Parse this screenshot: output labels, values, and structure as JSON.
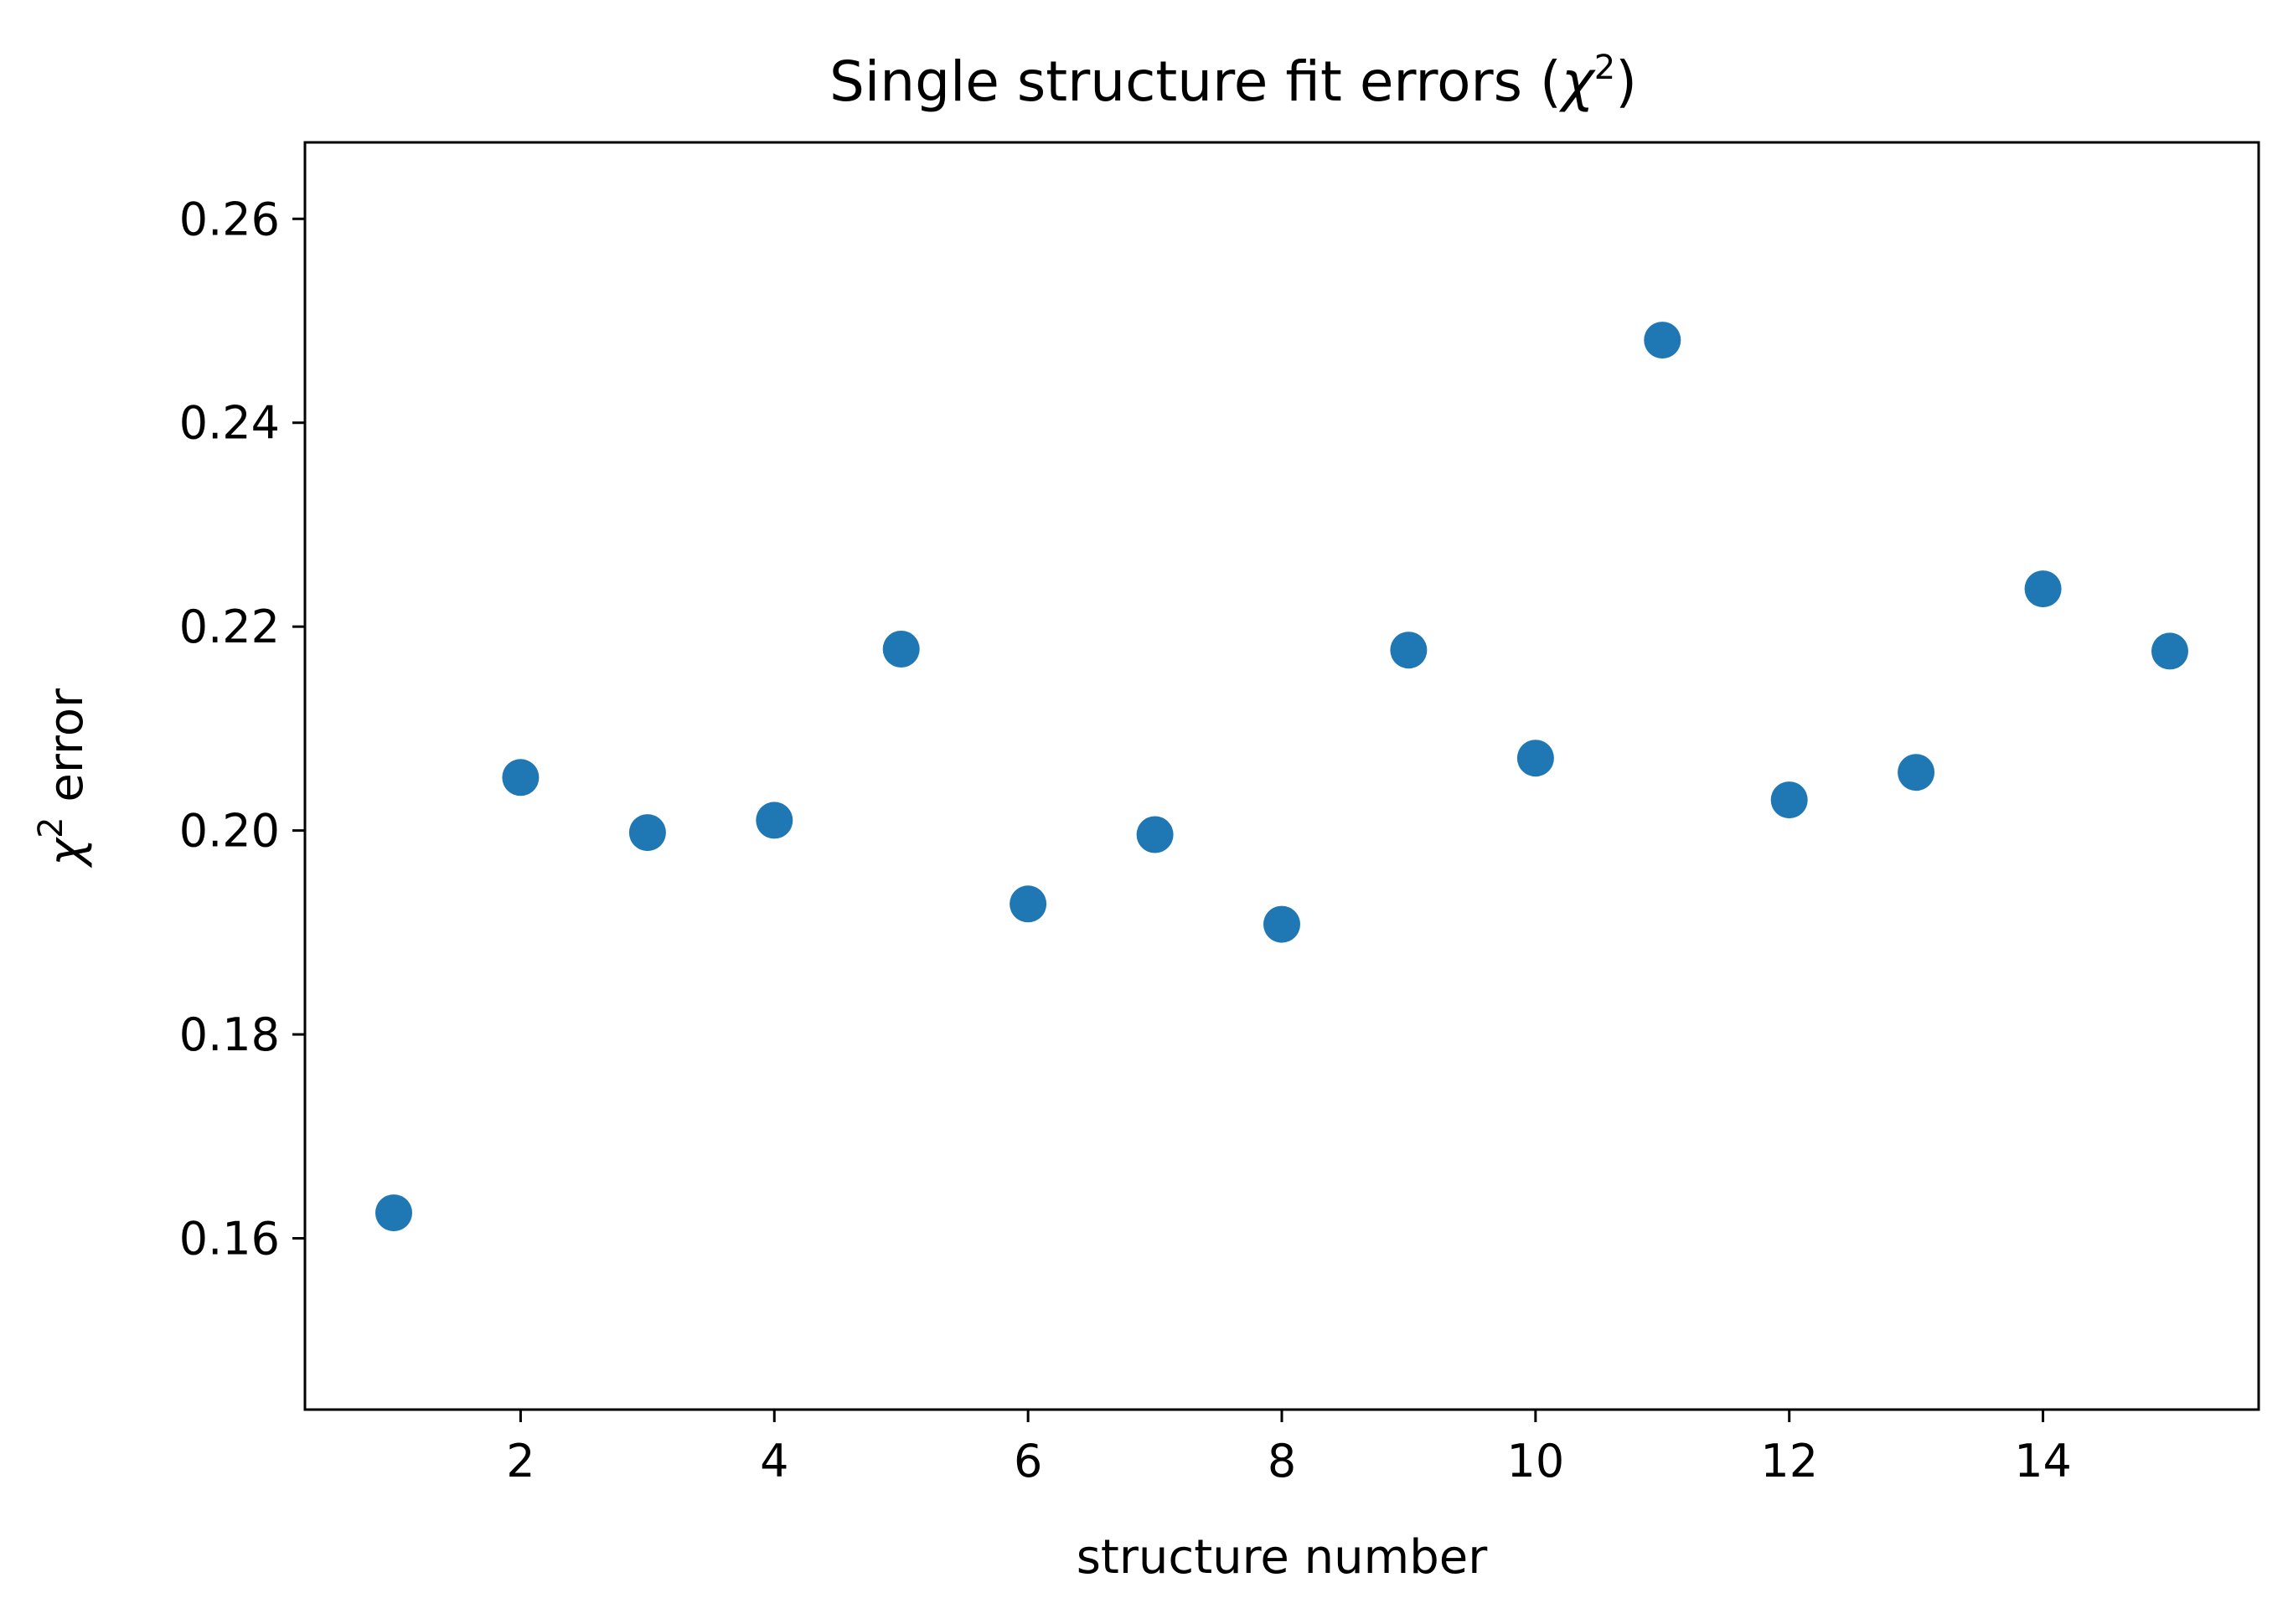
{
  "chart_data": {
    "type": "scatter",
    "title": "Single structure fit errors",
    "title_math": "χ",
    "title_sup": "2",
    "xlabel": "structure number",
    "ylabel_symbol": "χ",
    "ylabel_sup": "2",
    "ylabel_text": " error",
    "xlim": [
      0.3,
      15.7
    ],
    "ylim": [
      0.1432,
      0.2675
    ],
    "xticks": [
      2,
      4,
      6,
      8,
      10,
      12,
      14
    ],
    "xtick_labels": [
      "2",
      "4",
      "6",
      "8",
      "10",
      "12",
      "14"
    ],
    "yticks": [
      0.16,
      0.18,
      0.2,
      0.22,
      0.24,
      0.26
    ],
    "ytick_labels": [
      "0.16",
      "0.18",
      "0.20",
      "0.22",
      "0.24",
      "0.26"
    ],
    "grid": false,
    "legend": "none",
    "marker_color": "#1f77b4",
    "points": [
      {
        "x": 1,
        "y": 0.1625
      },
      {
        "x": 2,
        "y": 0.2052
      },
      {
        "x": 3,
        "y": 0.1998
      },
      {
        "x": 4,
        "y": 0.201
      },
      {
        "x": 5,
        "y": 0.2178
      },
      {
        "x": 6,
        "y": 0.1928
      },
      {
        "x": 7,
        "y": 0.1996
      },
      {
        "x": 8,
        "y": 0.1908
      },
      {
        "x": 9,
        "y": 0.2177
      },
      {
        "x": 10,
        "y": 0.2071
      },
      {
        "x": 11,
        "y": 0.2481
      },
      {
        "x": 12,
        "y": 0.203
      },
      {
        "x": 13,
        "y": 0.2057
      },
      {
        "x": 14,
        "y": 0.2237
      },
      {
        "x": 15,
        "y": 0.2176
      }
    ]
  }
}
